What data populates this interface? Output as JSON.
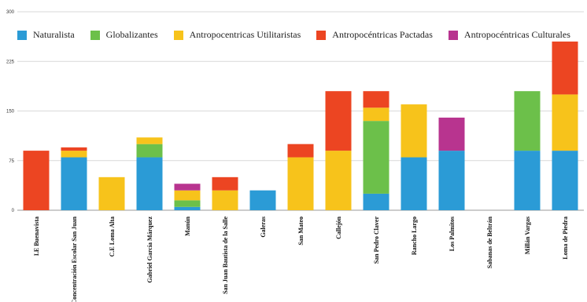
{
  "chart_data": {
    "type": "bar",
    "stacked": true,
    "title": "",
    "xlabel": "",
    "ylabel": "",
    "ylim": [
      0,
      300
    ],
    "yticks": [
      0,
      75,
      150,
      225,
      300
    ],
    "grid": true,
    "legend_position": "top",
    "categories": [
      "I.E Buenavista",
      "Concentración Escolar San Juan",
      "C.E Loma Alta",
      "Gabriel García Márquez",
      "Manún",
      "San Juan Bautista de la Salle",
      "Galeras",
      "San Mateo",
      "Callejón",
      "San Pedro Claver",
      "Rancho Largo",
      "Los Palmitos",
      "Sabanas de Beltrán",
      "Millán Vargas",
      "Loma de Piedra"
    ],
    "series": [
      {
        "name": "Naturalista",
        "color": "#2b9bd6",
        "values": [
          0,
          80,
          0,
          80,
          5,
          0,
          30,
          0,
          0,
          25,
          80,
          90,
          0,
          90,
          90
        ]
      },
      {
        "name": "Globalizantes",
        "color": "#6cc04a",
        "values": [
          0,
          0,
          0,
          20,
          10,
          0,
          0,
          0,
          0,
          110,
          0,
          0,
          0,
          90,
          0
        ]
      },
      {
        "name": "Antropocentricas Utilitaristas",
        "color": "#f7c31b",
        "values": [
          0,
          10,
          50,
          10,
          15,
          30,
          0,
          80,
          90,
          20,
          80,
          0,
          0,
          0,
          85
        ]
      },
      {
        "name": "Antropocéntricas Pactadas",
        "color": "#ec4522",
        "values": [
          90,
          5,
          0,
          0,
          0,
          20,
          0,
          20,
          90,
          25,
          0,
          0,
          0,
          0,
          80
        ]
      },
      {
        "name": "Antropocéntricas Culturales",
        "color": "#b8348f",
        "values": [
          0,
          0,
          0,
          0,
          10,
          0,
          0,
          0,
          0,
          0,
          0,
          50,
          0,
          0,
          0
        ]
      }
    ]
  }
}
